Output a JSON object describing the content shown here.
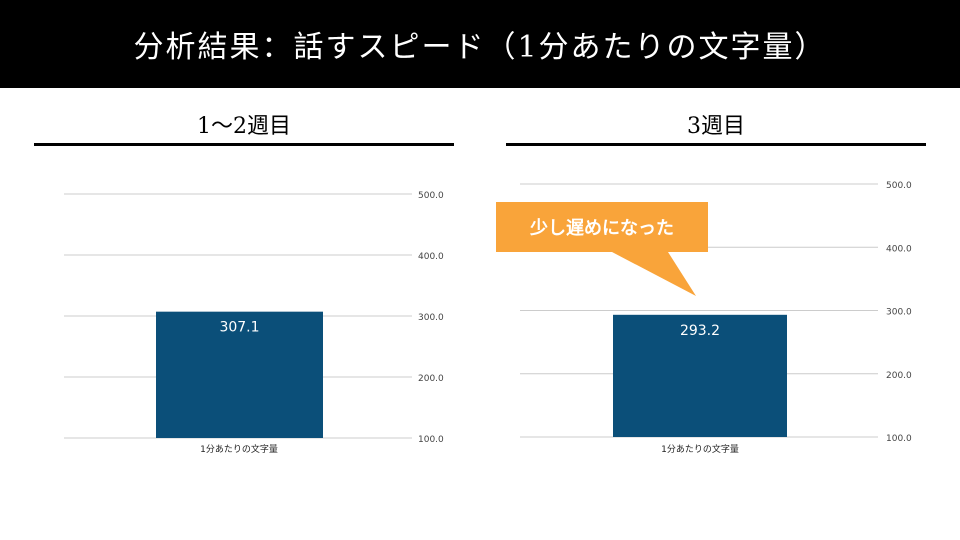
{
  "slide": {
    "title": "分析結果：話すスピード（1分あたりの文字量）"
  },
  "colors": {
    "title_bg": "#000000",
    "bar": "#0b4f79",
    "grid": "#cccccc",
    "callout_bg": "#f9a43a",
    "bar_label": "#ffffff",
    "tick_label": "#444444"
  },
  "callout": {
    "text": "少し遅めになった"
  },
  "chart_data": [
    {
      "type": "bar",
      "title": "1〜2週目",
      "categories": [
        "1分あたりの文字量"
      ],
      "values": [
        307.1
      ],
      "value_labels": [
        "307.1"
      ],
      "ylim": [
        100,
        500
      ],
      "yticks": [
        "100.0",
        "200.0",
        "300.0",
        "400.0",
        "500.0"
      ],
      "ytick_values": [
        100,
        200,
        300,
        400,
        500
      ],
      "y_axis_side": "right",
      "grid": true,
      "legend": "none"
    },
    {
      "type": "bar",
      "title": "3週目",
      "categories": [
        "1分あたりの文字量"
      ],
      "values": [
        293.2
      ],
      "value_labels": [
        "293.2"
      ],
      "ylim": [
        100,
        500
      ],
      "yticks": [
        "100.0",
        "200.0",
        "300.0",
        "400.0",
        "500.0"
      ],
      "ytick_values": [
        100,
        200,
        300,
        400,
        500
      ],
      "y_axis_side": "right",
      "grid": true,
      "legend": "none"
    }
  ]
}
